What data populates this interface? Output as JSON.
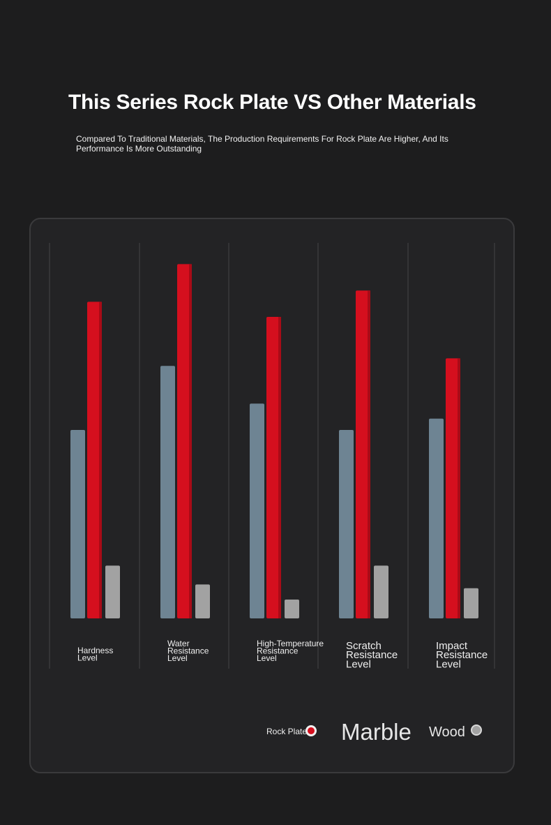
{
  "header": {
    "title": "This Series Rock Plate VS Other Materials",
    "subtitle": "Compared To Traditional Materials, The Production Requirements For Rock Plate Are Higher, And Its Performance Is More Outstanding"
  },
  "colors": {
    "rock_plate": "#d50f1e",
    "marble": "#6e8493",
    "wood": "#a2a2a2",
    "background": "#1d1d1e",
    "panel": "#232325"
  },
  "chart_data": {
    "type": "bar",
    "categories": [
      [
        "Hardness",
        "Level"
      ],
      [
        "Water",
        "Resistance",
        "Level"
      ],
      [
        "High-Temperature",
        "Resistance",
        "Level"
      ],
      [
        "Scratch",
        "Resistance",
        "Level"
      ],
      [
        "Impact",
        "Resistance",
        "Level"
      ]
    ],
    "series": [
      {
        "name": "Marble",
        "values": [
          50,
          67,
          57,
          50,
          53
        ]
      },
      {
        "name": "Rock Plate",
        "values": [
          84,
          94,
          80,
          87,
          69
        ]
      },
      {
        "name": "Wood",
        "values": [
          14,
          9,
          5,
          14,
          8
        ]
      }
    ],
    "ylim": [
      0,
      100
    ],
    "grid": "vertical separators",
    "legend": "bottom-right"
  },
  "legend": {
    "rock_plate": "Rock Plate",
    "marble": "Marble",
    "wood": "Wood"
  }
}
